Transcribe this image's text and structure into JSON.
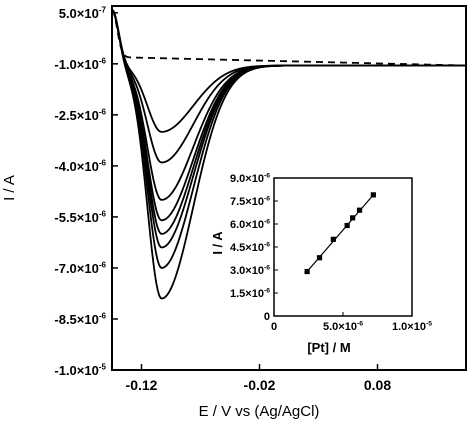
{
  "chart_data": [
    {
      "type": "line",
      "title": "",
      "xlabel": "E / V vs (Ag/AgCl)",
      "ylabel": "I / A",
      "xlim": [
        -0.145,
        0.155
      ],
      "ylim": [
        -1e-05,
        7e-07
      ],
      "x_ticks": [
        -0.12,
        -0.02,
        0.08
      ],
      "x_tick_labels": [
        "-0.12",
        "-0.02",
        "0.08"
      ],
      "y_ticks": [
        5e-07,
        -1e-06,
        -2.5e-06,
        -4e-06,
        -5.5e-06,
        -7e-06,
        -8.5e-06,
        -1e-05
      ],
      "y_tick_labels": [
        {
          "m": "5.0×10",
          "e": "-7"
        },
        {
          "m": "-1.0×10",
          "e": "-6"
        },
        {
          "m": "-2.5×10",
          "e": "-6"
        },
        {
          "m": "-4.0×10",
          "e": "-6"
        },
        {
          "m": "-5.5×10",
          "e": "-6"
        },
        {
          "m": "-7.0×10",
          "e": "-6"
        },
        {
          "m": "-8.5×10",
          "e": "-6"
        },
        {
          "m": "-1.0×10",
          "e": "-5"
        }
      ],
      "grid": false,
      "legend": "none",
      "series_shape": {
        "start": [
          -0.145,
          6e-07
        ],
        "peak_x": -0.103,
        "end_x": 0.155,
        "end_y": -1.05e-06
      },
      "series": [
        {
          "style": "dashed",
          "peak": -8e-07
        },
        {
          "style": "solid",
          "peak": -3e-06
        },
        {
          "style": "solid",
          "peak": -3.9e-06
        },
        {
          "style": "solid",
          "peak": -5e-06
        },
        {
          "style": "solid",
          "peak": -5.6e-06
        },
        {
          "style": "solid",
          "peak": -6e-06
        },
        {
          "style": "solid",
          "peak": -6.4e-06
        },
        {
          "style": "solid",
          "peak": -7e-06
        },
        {
          "style": "solid",
          "peak": -7.9e-06
        }
      ]
    },
    {
      "type": "scatter",
      "title": "",
      "xlabel": "[Pt] / M",
      "ylabel": "I / A",
      "xlim": [
        0,
        1e-05
      ],
      "ylim": [
        0,
        9e-06
      ],
      "x_ticks": [
        0,
        5e-06,
        1e-05
      ],
      "x_tick_labels": [
        {
          "m": "0",
          "e": ""
        },
        {
          "m": "5.0×10",
          "e": "-6"
        },
        {
          "m": "1.0×10",
          "e": "-5"
        }
      ],
      "y_ticks": [
        0,
        1.5e-06,
        3e-06,
        4.5e-06,
        6e-06,
        7.5e-06,
        9e-06
      ],
      "y_tick_labels": [
        {
          "m": "0",
          "e": ""
        },
        {
          "m": "1.5×10",
          "e": "-6"
        },
        {
          "m": "3.0×10",
          "e": "-6"
        },
        {
          "m": "4.5×10",
          "e": "-6"
        },
        {
          "m": "6.0×10",
          "e": "-6"
        },
        {
          "m": "7.5×10",
          "e": "-6"
        },
        {
          "m": "9.0×10",
          "e": "-6"
        }
      ],
      "grid": false,
      "legend": "none",
      "fit_line": true,
      "points": [
        {
          "x": 2.4e-06,
          "y": 2.9e-06
        },
        {
          "x": 3.3e-06,
          "y": 3.8e-06
        },
        {
          "x": 4.3e-06,
          "y": 5e-06
        },
        {
          "x": 5.3e-06,
          "y": 5.9e-06
        },
        {
          "x": 5.7e-06,
          "y": 6.4e-06
        },
        {
          "x": 6.2e-06,
          "y": 6.9e-06
        },
        {
          "x": 7.2e-06,
          "y": 7.9e-06
        }
      ]
    }
  ]
}
